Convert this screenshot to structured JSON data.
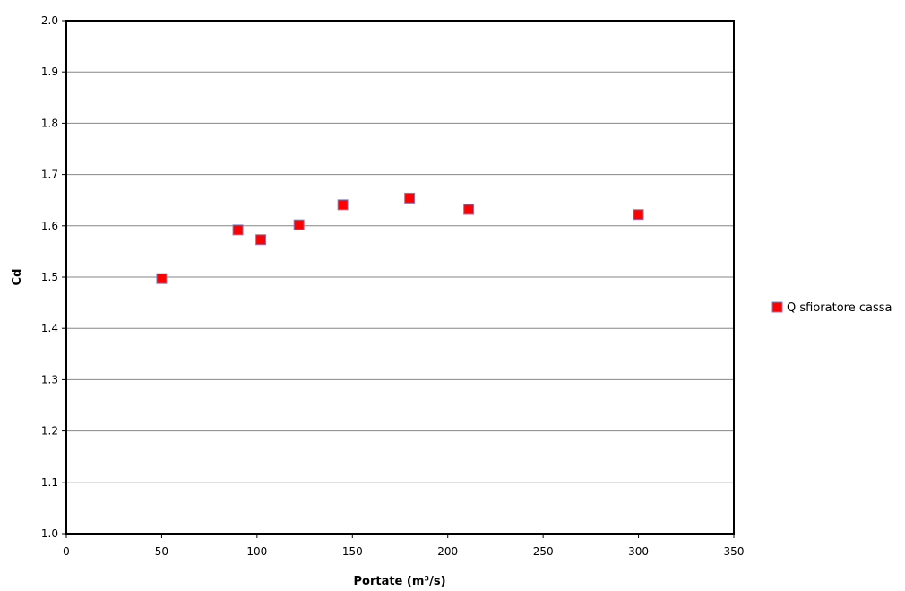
{
  "chart_data": {
    "type": "scatter",
    "xlabel": "Portate (m³/s)",
    "ylabel": "Cd",
    "xlim": [
      0,
      350
    ],
    "ylim": [
      1.0,
      2.0
    ],
    "x_ticks": [
      0,
      50,
      100,
      150,
      200,
      250,
      300,
      350
    ],
    "y_ticks": [
      1.0,
      1.1,
      1.2,
      1.3,
      1.4,
      1.5,
      1.6,
      1.7,
      1.8,
      1.9,
      2.0
    ],
    "grid": "horizontal",
    "legend_position": "right",
    "series": [
      {
        "name": "Q sfioratore cassa",
        "color": "#ff0000",
        "marker": "square",
        "points": [
          {
            "x": 50,
            "y": 1.497
          },
          {
            "x": 90,
            "y": 1.592
          },
          {
            "x": 102,
            "y": 1.573
          },
          {
            "x": 122,
            "y": 1.602
          },
          {
            "x": 145,
            "y": 1.641
          },
          {
            "x": 180,
            "y": 1.654
          },
          {
            "x": 211,
            "y": 1.632
          },
          {
            "x": 300,
            "y": 1.622
          }
        ]
      }
    ]
  }
}
